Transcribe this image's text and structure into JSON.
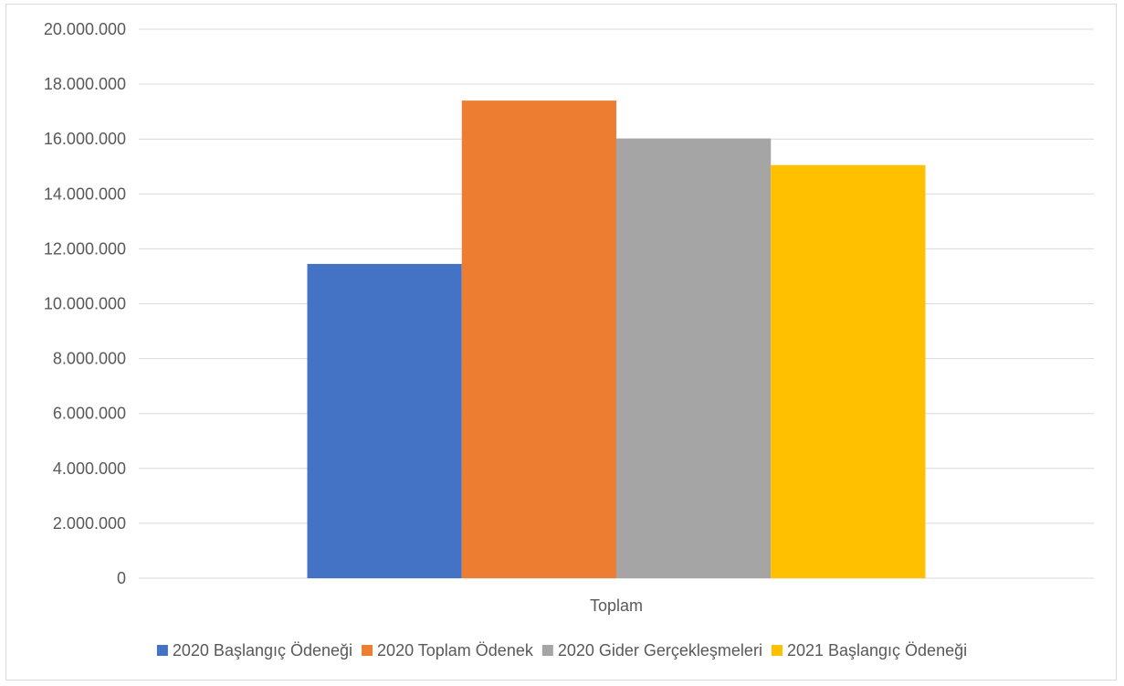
{
  "chart_data": {
    "type": "bar",
    "categories": [
      "Toplam"
    ],
    "series": [
      {
        "name": "2020 Başlangıç Ödeneği",
        "values": [
          11450000
        ],
        "color": "#4472C4"
      },
      {
        "name": "2020 Toplam Ödenek",
        "values": [
          17400000
        ],
        "color": "#ED7D31"
      },
      {
        "name": "2020 Gider Gerçekleşmeleri",
        "values": [
          16020000
        ],
        "color": "#A5A5A5"
      },
      {
        "name": "2021 Başlangıç Ödeneği",
        "values": [
          15050000
        ],
        "color": "#FFC000"
      }
    ],
    "yticks": [
      "0",
      "2.000.000",
      "4.000.000",
      "6.000.000",
      "8.000.000",
      "10.000.000",
      "12.000.000",
      "14.000.000",
      "16.000.000",
      "18.000.000",
      "20.000.000"
    ],
    "ylim": [
      0,
      20000000
    ],
    "grid": true,
    "gridline_color": "#d9d9d9",
    "legend_position": "bottom"
  }
}
